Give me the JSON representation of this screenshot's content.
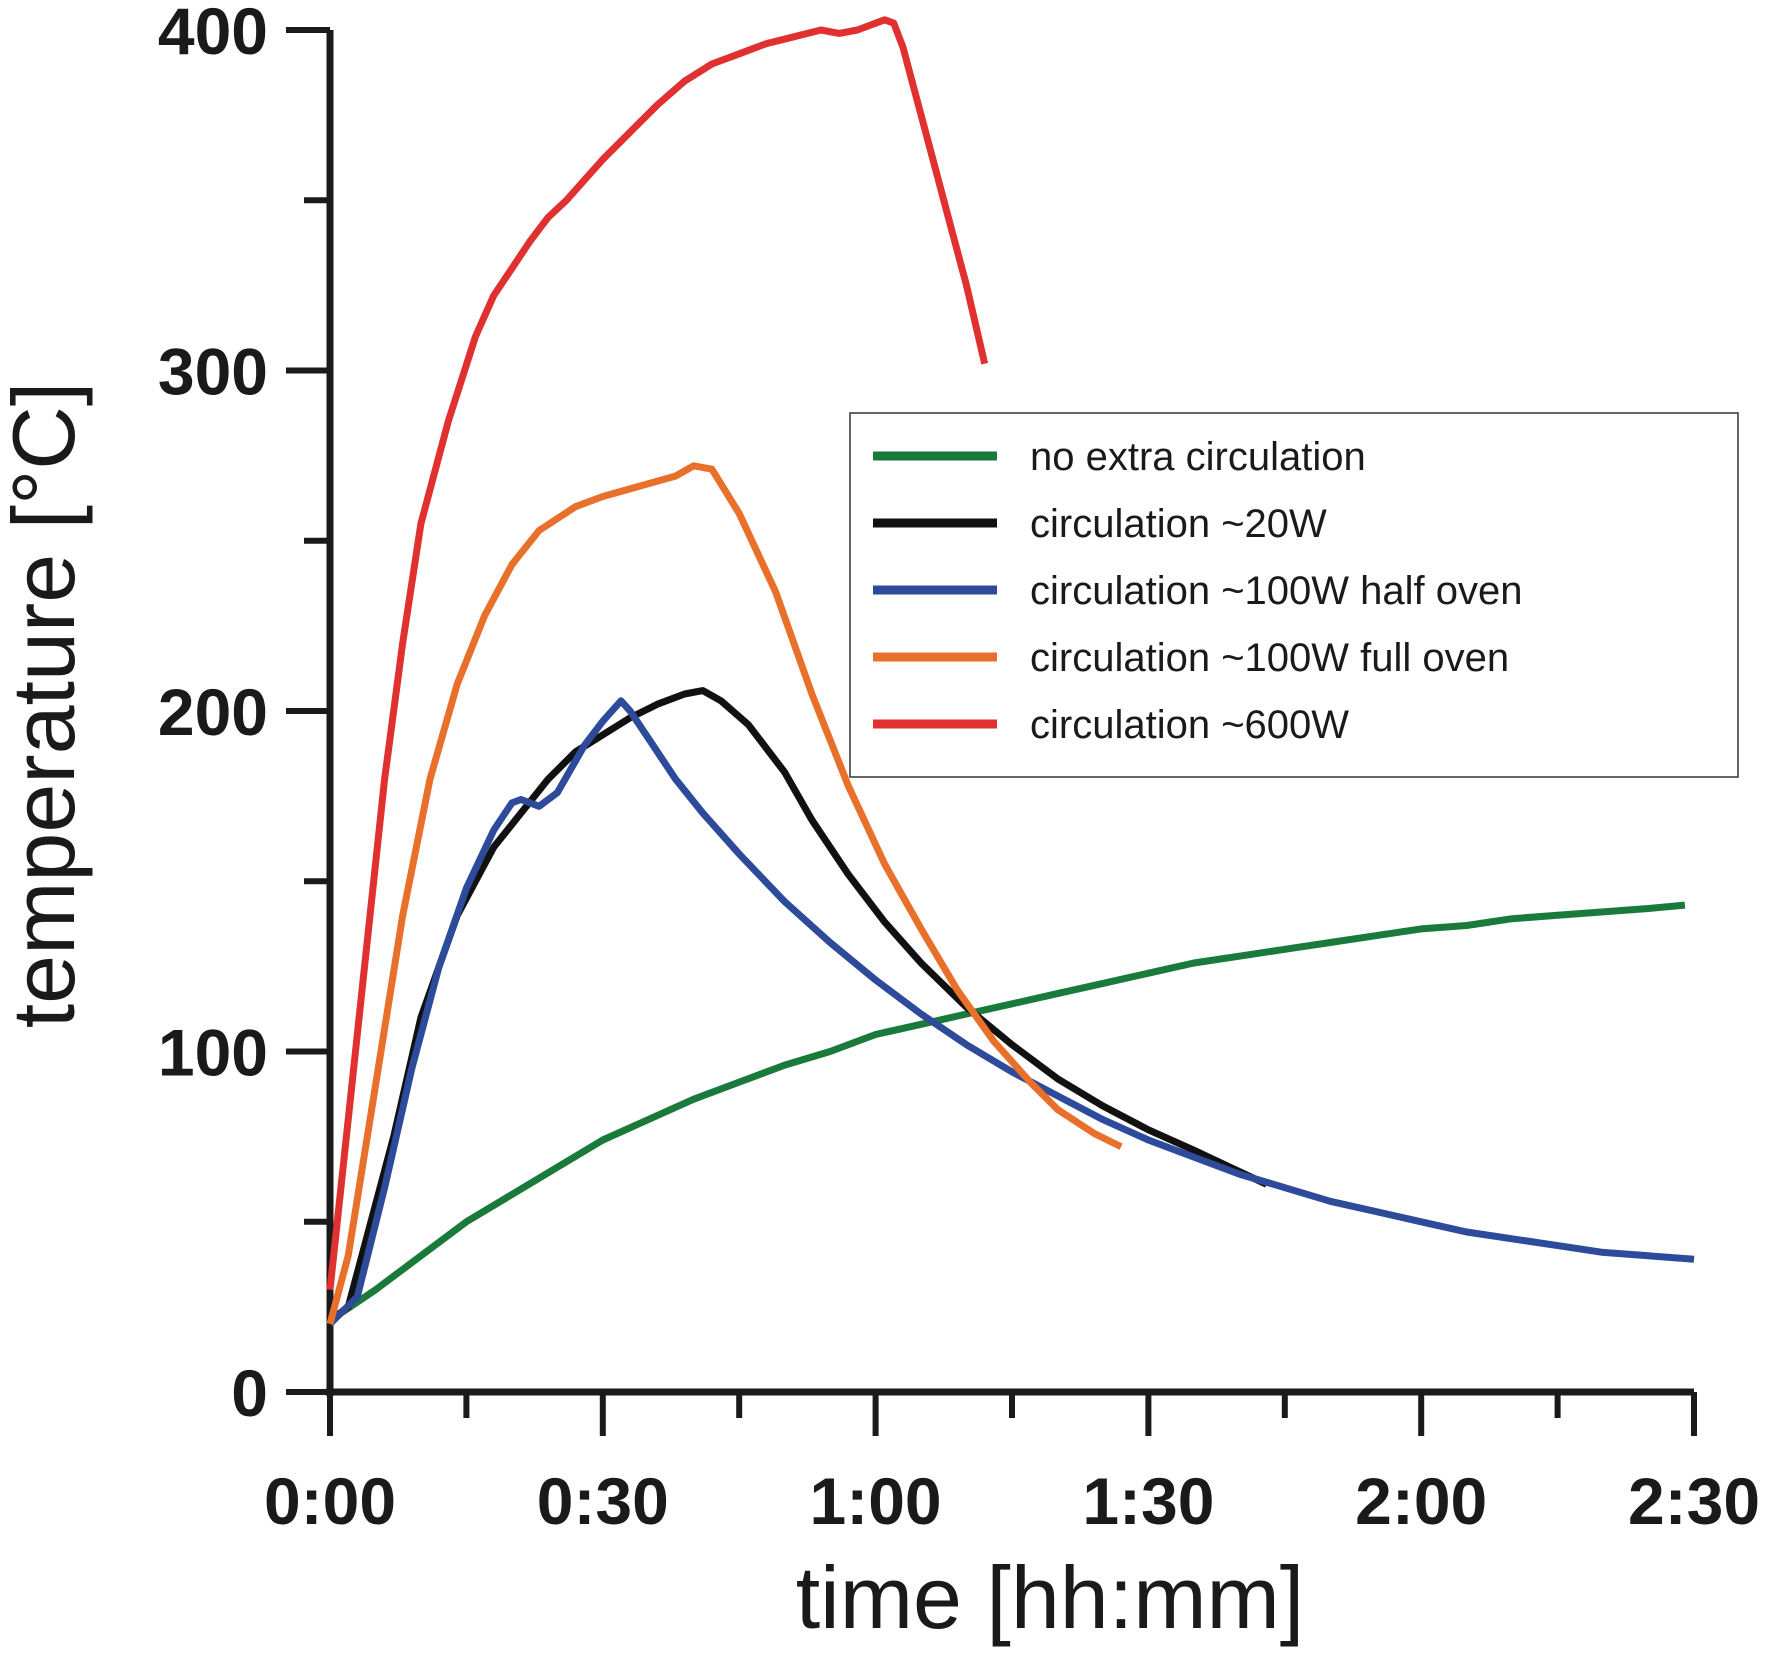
{
  "chart_data": {
    "type": "line",
    "xlabel": "time [hh:mm]",
    "ylabel": "temperature [°C]",
    "xlim": [
      0,
      150
    ],
    "ylim": [
      0,
      400
    ],
    "x_ticks": [
      {
        "value": 0,
        "label": "0:00"
      },
      {
        "value": 30,
        "label": "0:30"
      },
      {
        "value": 60,
        "label": "1:00"
      },
      {
        "value": 90,
        "label": "1:30"
      },
      {
        "value": 120,
        "label": "2:00"
      },
      {
        "value": 150,
        "label": "2:30"
      }
    ],
    "y_ticks": [
      {
        "value": 0,
        "label": "0"
      },
      {
        "value": 100,
        "label": "100"
      },
      {
        "value": 200,
        "label": "200"
      },
      {
        "value": 300,
        "label": "300"
      },
      {
        "value": 400,
        "label": "400"
      }
    ],
    "x_minor_ticks": [
      15,
      45,
      75,
      105,
      135
    ],
    "y_minor_ticks": [
      50,
      150,
      250,
      350
    ],
    "grid": false,
    "legend_position": "right",
    "series": [
      {
        "name": "no extra circulation",
        "color": "#1a7a3c",
        "points": [
          [
            0,
            21
          ],
          [
            5,
            30
          ],
          [
            10,
            40
          ],
          [
            15,
            50
          ],
          [
            20,
            58
          ],
          [
            25,
            66
          ],
          [
            30,
            74
          ],
          [
            35,
            80
          ],
          [
            40,
            86
          ],
          [
            45,
            91
          ],
          [
            50,
            96
          ],
          [
            55,
            100
          ],
          [
            60,
            105
          ],
          [
            65,
            108
          ],
          [
            70,
            111
          ],
          [
            75,
            114
          ],
          [
            80,
            117
          ],
          [
            85,
            120
          ],
          [
            90,
            123
          ],
          [
            95,
            126
          ],
          [
            100,
            128
          ],
          [
            105,
            130
          ],
          [
            110,
            132
          ],
          [
            115,
            134
          ],
          [
            120,
            136
          ],
          [
            125,
            137
          ],
          [
            130,
            139
          ],
          [
            135,
            140
          ],
          [
            140,
            141
          ],
          [
            145,
            142
          ],
          [
            149,
            143
          ]
        ]
      },
      {
        "name": "circulation ~20W",
        "color": "#111111",
        "points": [
          [
            0,
            21
          ],
          [
            2,
            25
          ],
          [
            4,
            45
          ],
          [
            7,
            75
          ],
          [
            10,
            110
          ],
          [
            14,
            140
          ],
          [
            18,
            160
          ],
          [
            21,
            170
          ],
          [
            24,
            180
          ],
          [
            27,
            188
          ],
          [
            30,
            193
          ],
          [
            33,
            198
          ],
          [
            36,
            202
          ],
          [
            39,
            205
          ],
          [
            41,
            206
          ],
          [
            43,
            203
          ],
          [
            46,
            196
          ],
          [
            50,
            182
          ],
          [
            53,
            168
          ],
          [
            57,
            152
          ],
          [
            61,
            138
          ],
          [
            65,
            126
          ],
          [
            70,
            113
          ],
          [
            75,
            102
          ],
          [
            80,
            92
          ],
          [
            85,
            84
          ],
          [
            90,
            77
          ],
          [
            95,
            71
          ],
          [
            99,
            66
          ],
          [
            103,
            61
          ]
        ]
      },
      {
        "name": "circulation ~100W half oven",
        "color": "#2e4a9a",
        "points": [
          [
            0,
            20
          ],
          [
            3,
            28
          ],
          [
            6,
            60
          ],
          [
            9,
            95
          ],
          [
            12,
            125
          ],
          [
            15,
            148
          ],
          [
            18,
            165
          ],
          [
            20,
            173
          ],
          [
            21,
            174
          ],
          [
            23,
            172
          ],
          [
            25,
            176
          ],
          [
            28,
            190
          ],
          [
            30,
            197
          ],
          [
            32,
            203
          ],
          [
            33,
            200
          ],
          [
            35,
            192
          ],
          [
            38,
            180
          ],
          [
            41,
            170
          ],
          [
            45,
            158
          ],
          [
            50,
            144
          ],
          [
            55,
            132
          ],
          [
            60,
            121
          ],
          [
            65,
            111
          ],
          [
            70,
            102
          ],
          [
            75,
            94
          ],
          [
            80,
            87
          ],
          [
            85,
            80
          ],
          [
            90,
            74
          ],
          [
            95,
            69
          ],
          [
            100,
            64
          ],
          [
            105,
            60
          ],
          [
            110,
            56
          ],
          [
            115,
            53
          ],
          [
            120,
            50
          ],
          [
            125,
            47
          ],
          [
            130,
            45
          ],
          [
            135,
            43
          ],
          [
            140,
            41
          ],
          [
            145,
            40
          ],
          [
            150,
            39
          ]
        ]
      },
      {
        "name": "circulation ~100W full oven",
        "color": "#e8702a",
        "points": [
          [
            0,
            20
          ],
          [
            2,
            40
          ],
          [
            5,
            90
          ],
          [
            8,
            140
          ],
          [
            11,
            180
          ],
          [
            14,
            208
          ],
          [
            17,
            228
          ],
          [
            20,
            243
          ],
          [
            23,
            253
          ],
          [
            27,
            260
          ],
          [
            30,
            263
          ],
          [
            34,
            266
          ],
          [
            38,
            269
          ],
          [
            40,
            272
          ],
          [
            42,
            271
          ],
          [
            45,
            258
          ],
          [
            49,
            235
          ],
          [
            53,
            205
          ],
          [
            57,
            178
          ],
          [
            61,
            155
          ],
          [
            65,
            136
          ],
          [
            69,
            118
          ],
          [
            73,
            103
          ],
          [
            77,
            91
          ],
          [
            80,
            83
          ],
          [
            84,
            76
          ],
          [
            87,
            72
          ]
        ]
      },
      {
        "name": "circulation ~600W",
        "color": "#e03030",
        "points": [
          [
            0,
            30
          ],
          [
            2,
            80
          ],
          [
            4,
            130
          ],
          [
            6,
            180
          ],
          [
            8,
            220
          ],
          [
            10,
            255
          ],
          [
            13,
            285
          ],
          [
            16,
            310
          ],
          [
            18,
            322
          ],
          [
            20,
            330
          ],
          [
            22,
            338
          ],
          [
            24,
            345
          ],
          [
            26,
            350
          ],
          [
            28,
            356
          ],
          [
            30,
            362
          ],
          [
            33,
            370
          ],
          [
            36,
            378
          ],
          [
            39,
            385
          ],
          [
            42,
            390
          ],
          [
            45,
            393
          ],
          [
            48,
            396
          ],
          [
            51,
            398
          ],
          [
            54,
            400
          ],
          [
            56,
            399
          ],
          [
            58,
            400
          ],
          [
            60,
            402
          ],
          [
            61,
            403
          ],
          [
            62,
            402
          ],
          [
            63,
            395
          ],
          [
            64,
            385
          ],
          [
            66,
            365
          ],
          [
            68,
            345
          ],
          [
            70,
            325
          ],
          [
            72,
            302
          ]
        ]
      }
    ]
  }
}
